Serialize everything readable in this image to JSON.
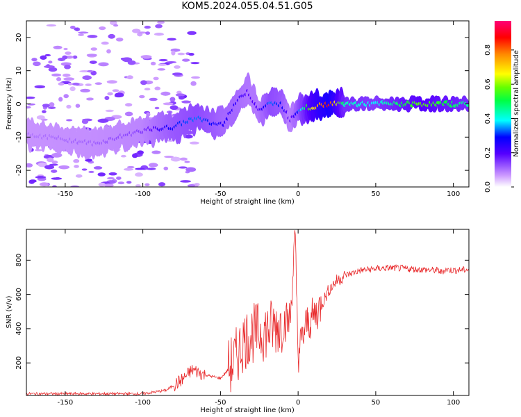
{
  "title": "KOM5.2024.055.04.51.G05",
  "chart_data": [
    {
      "type": "heatmap",
      "xlabel": "Height of straight line (km)",
      "ylabel": "Frequency (Hz)",
      "xlim": [
        -175,
        110
      ],
      "ylim": [
        -25,
        25
      ],
      "xticks": [
        -150,
        -100,
        -50,
        0,
        50,
        100
      ],
      "yticks": [
        -20,
        -10,
        0,
        10,
        20
      ],
      "colorbar": {
        "label": "Normalized spectral amplitude",
        "range": [
          0.0,
          0.97
        ],
        "ticks": [
          0.0,
          0.2,
          0.4,
          0.6,
          0.8
        ]
      },
      "ridge": {
        "x": [
          -175,
          -130,
          -100,
          -80,
          -65,
          -55,
          -48,
          -40,
          -32,
          -25,
          -18,
          -10,
          -5,
          0,
          5,
          10,
          20,
          30,
          50,
          80,
          110
        ],
        "frequency": [
          -9,
          -12,
          -8,
          -7,
          -4,
          -6,
          -6,
          0,
          4,
          -2,
          0,
          0,
          -5,
          -2,
          -1,
          -1,
          0,
          0,
          0,
          0,
          0
        ],
        "amplitude": [
          0.1,
          0.12,
          0.15,
          0.3,
          0.35,
          0.3,
          0.25,
          0.25,
          0.2,
          0.2,
          0.35,
          0.3,
          0.15,
          0.3,
          0.5,
          0.7,
          0.9,
          0.45,
          0.4,
          0.6,
          0.45
        ]
      }
    },
    {
      "type": "line",
      "xlabel": "Height of straight line (km)",
      "ylabel": "SNR (v/v)",
      "xlim": [
        -175,
        110
      ],
      "ylim": [
        10,
        980
      ],
      "xticks": [
        -150,
        -100,
        -50,
        0,
        50,
        100
      ],
      "yticks": [
        200,
        400,
        600,
        800
      ],
      "color": "#e8282a",
      "x": [
        -175,
        -150,
        -125,
        -100,
        -85,
        -75,
        -68,
        -60,
        -50,
        -45,
        -40,
        -35,
        -30,
        -25,
        -20,
        -15,
        -10,
        -5,
        -2,
        0,
        5,
        10,
        15,
        20,
        25,
        30,
        40,
        50,
        60,
        70,
        80,
        90,
        92,
        95,
        100,
        110
      ],
      "y": [
        20,
        20,
        20,
        20,
        40,
        100,
        160,
        130,
        110,
        160,
        230,
        330,
        370,
        380,
        390,
        410,
        430,
        460,
        950,
        250,
        420,
        470,
        540,
        630,
        680,
        710,
        740,
        750,
        755,
        750,
        745,
        740,
        730,
        745,
        740,
        745
      ]
    }
  ]
}
